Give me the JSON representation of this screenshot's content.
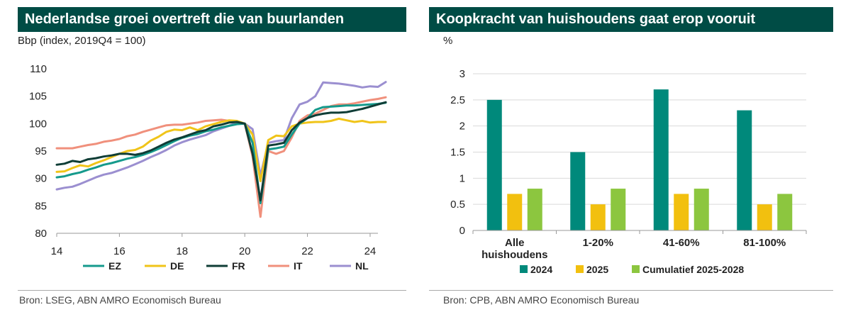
{
  "left": {
    "title": "Nederlandse groei overtreft die van buurlanden",
    "unit_label": "Bbp (index, 2019Q4 = 100)",
    "source": "Bron: LSEG, ABN AMRO Economisch Bureau"
  },
  "right": {
    "title": "Koopkracht van huishoudens gaat erop vooruit",
    "unit_label": "%",
    "source": "Bron: CPB, ABN AMRO Economisch Bureau"
  },
  "chart_data": [
    {
      "type": "line",
      "title": "Nederlandse groei overtreft die van buurlanden",
      "ylabel": "Bbp (index, 2019Q4 = 100)",
      "xlabel": "",
      "xlim": [
        2014.0,
        2024.25
      ],
      "ylim": [
        80,
        110
      ],
      "xticks": [
        14,
        16,
        18,
        20,
        22,
        24
      ],
      "xtick_values": [
        2014,
        2016,
        2018,
        2020,
        2022,
        2024
      ],
      "yticks": [
        80,
        85,
        90,
        95,
        100,
        105,
        110
      ],
      "grid": false,
      "legend": "bottom",
      "x_start": 2014.0,
      "x_step": 0.25,
      "series": [
        {
          "name": "EZ",
          "color": "#159a8c",
          "values": [
            90.2,
            90.4,
            90.8,
            91.1,
            91.6,
            92.0,
            92.5,
            92.8,
            93.2,
            93.6,
            93.9,
            94.3,
            94.8,
            95.4,
            96.1,
            96.8,
            97.4,
            97.8,
            98.1,
            98.6,
            98.9,
            99.3,
            99.6,
            99.9,
            100.0,
            96.5,
            85.5,
            95.3,
            95.5,
            95.8,
            98.0,
            100.0,
            101.0,
            102.5,
            103.0,
            103.1,
            103.2,
            103.3,
            103.3,
            103.4,
            103.5,
            103.6,
            103.8
          ]
        },
        {
          "name": "DE",
          "color": "#f0c419",
          "values": [
            91.2,
            91.3,
            91.9,
            92.4,
            92.2,
            92.8,
            93.3,
            93.9,
            94.5,
            95.0,
            95.2,
            95.8,
            96.9,
            97.6,
            98.5,
            98.9,
            98.8,
            99.3,
            98.8,
            99.5,
            99.9,
            100.3,
            100.6,
            100.5,
            100.0,
            98.0,
            89.5,
            97.0,
            97.8,
            97.7,
            99.5,
            100.0,
            100.2,
            100.3,
            100.3,
            100.5,
            100.9,
            100.6,
            100.3,
            100.5,
            100.2,
            100.3,
            100.3
          ]
        },
        {
          "name": "FR",
          "color": "#0f3d36",
          "values": [
            92.5,
            92.7,
            93.2,
            93.0,
            93.5,
            93.7,
            94.0,
            94.2,
            94.5,
            94.5,
            94.3,
            94.6,
            95.1,
            95.8,
            96.5,
            97.1,
            97.5,
            98.0,
            98.5,
            98.8,
            99.5,
            99.8,
            100.2,
            100.3,
            100.0,
            94.5,
            86.0,
            96.0,
            96.2,
            96.5,
            98.8,
            100.2,
            101.0,
            101.5,
            101.8,
            102.0,
            102.0,
            102.1,
            102.4,
            102.7,
            103.1,
            103.5,
            103.9
          ]
        },
        {
          "name": "IT",
          "color": "#f0907c",
          "values": [
            95.5,
            95.5,
            95.5,
            95.8,
            96.1,
            96.3,
            96.7,
            96.9,
            97.2,
            97.7,
            98.0,
            98.5,
            98.9,
            99.3,
            99.7,
            99.8,
            99.8,
            100.0,
            100.2,
            100.5,
            100.6,
            100.7,
            100.5,
            100.2,
            100.0,
            94.0,
            83.0,
            95.0,
            94.5,
            95.0,
            97.5,
            100.5,
            101.5,
            101.8,
            102.5,
            103.2,
            103.5,
            103.5,
            103.7,
            104.0,
            104.3,
            104.5,
            104.8
          ]
        },
        {
          "name": "NL",
          "color": "#9b8fd0",
          "values": [
            88.0,
            88.3,
            88.5,
            89.0,
            89.6,
            90.2,
            90.7,
            91.0,
            91.5,
            92.0,
            92.6,
            93.2,
            93.9,
            94.5,
            95.2,
            96.0,
            96.6,
            97.1,
            97.5,
            97.9,
            98.6,
            99.1,
            99.6,
            100.2,
            100.0,
            99.0,
            90.5,
            96.5,
            96.8,
            97.0,
            101.0,
            103.5,
            104.0,
            105.0,
            107.5,
            107.4,
            107.3,
            107.1,
            106.9,
            106.6,
            106.8,
            106.7,
            107.6
          ]
        }
      ]
    },
    {
      "type": "bar",
      "title": "Koopkracht van huishoudens gaat erop vooruit",
      "ylabel": "%",
      "xlabel": "",
      "categories": [
        [
          "Alle",
          "huishoudens"
        ],
        [
          "1-20%"
        ],
        [
          "41-60%"
        ],
        [
          "81-100%"
        ]
      ],
      "ylim": [
        0,
        3
      ],
      "yticks": [
        "0",
        "0.5",
        "1",
        "1.5",
        "2",
        "2.5",
        "3"
      ],
      "ytick_values": [
        0,
        0.5,
        1,
        1.5,
        2,
        2.5,
        3
      ],
      "grid": true,
      "legend": "bottom",
      "series": [
        {
          "name": "2024",
          "color": "#00897b",
          "values": [
            2.5,
            1.5,
            2.7,
            2.3
          ]
        },
        {
          "name": "2025",
          "color": "#f2c00f",
          "values": [
            0.7,
            0.5,
            0.7,
            0.5
          ]
        },
        {
          "name": "Cumulatief 2025-2028",
          "color": "#8cc63f",
          "values": [
            0.8,
            0.8,
            0.8,
            0.7
          ]
        }
      ]
    }
  ]
}
